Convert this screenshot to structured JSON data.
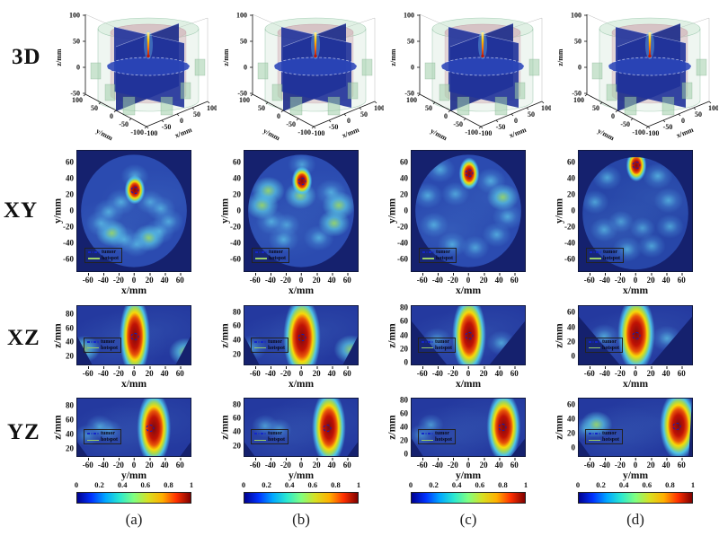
{
  "row_labels": [
    "3D",
    "XY",
    "XZ",
    "YZ"
  ],
  "column_labels": [
    "(a)",
    "(b)",
    "(c)",
    "(d)"
  ],
  "legend": {
    "tumor_label": "tumor",
    "hotspot_label": "hotspot"
  },
  "colorbar": {
    "ticks": [
      "0",
      "0.2",
      "0.4",
      "0.6",
      "0.8",
      "1"
    ],
    "colormap": "jet",
    "colormap_stops": [
      "#00008f",
      "#0032ff",
      "#00a8ff",
      "#2ae8d0",
      "#80ff80",
      "#d8e022",
      "#ffb000",
      "#ff3000",
      "#800000"
    ]
  },
  "colors": {
    "background_low": "#15216e",
    "domain_blue": "#24399f",
    "xy_circle_blue": "#2b4bb0",
    "hotspot_core_red": "#7c0a0f",
    "tumor_contour_blue": "#0d1fc0",
    "hotspot_contour_green": "#9acd66",
    "phantom_green": "#bcd9c2",
    "inner_pink": "#d2a7b0"
  },
  "axes_3d": {
    "x_label": "x/mm",
    "y_label": "y/mm",
    "z_label": "z/mm",
    "x_ticks": [
      "-100",
      "-50",
      "0",
      "50",
      "100"
    ],
    "y_ticks": [
      "100",
      "50",
      "0",
      "-50",
      "-100"
    ],
    "z_ticks": [
      "100",
      "50",
      "0",
      "-50"
    ]
  },
  "chart_data": {
    "type": "heatmap",
    "value_range": [
      0,
      1
    ],
    "panels": {
      "xy": {
        "xlabel": "x/mm",
        "ylabel": "y/mm",
        "xticks": [
          "-60",
          "-40",
          "-20",
          "0",
          "20",
          "40",
          "60"
        ],
        "yticks": [
          "60",
          "40",
          "20",
          "0",
          "-20",
          "-40",
          "-60"
        ],
        "xrange_mm": [
          -75,
          75
        ],
        "yrange_mm": [
          -75,
          75
        ],
        "phantom_radius_mm": 70,
        "columns": [
          {
            "hotspot_mm": [
              0,
              27
            ],
            "tumor_mm": [
              0,
              27
            ],
            "core_mm": [
              6,
              8
            ],
            "blobs": [
              [
                -18,
                12,
                0.5
              ],
              [
                -34,
                0,
                0.5
              ],
              [
                -44,
                -14,
                0.5
              ],
              [
                -30,
                -26,
                0.55
              ],
              [
                -14,
                -34,
                0.5
              ],
              [
                2,
                -40,
                0.45
              ],
              [
                18,
                -32,
                0.55
              ],
              [
                32,
                -24,
                0.5
              ],
              [
                44,
                -12,
                0.5
              ],
              [
                34,
                4,
                0.45
              ],
              [
                0,
                44,
                0.4
              ],
              [
                20,
                12,
                0.4
              ]
            ]
          },
          {
            "hotspot_mm": [
              0,
              38
            ],
            "tumor_mm": [
              0,
              38
            ],
            "core_mm": [
              6,
              8
            ],
            "blobs": [
              [
                -44,
                26,
                0.6
              ],
              [
                -52,
                8,
                0.6
              ],
              [
                -40,
                -12,
                0.5
              ],
              [
                -24,
                -34,
                0.5
              ],
              [
                22,
                -32,
                0.5
              ],
              [
                42,
                -14,
                0.55
              ],
              [
                48,
                8,
                0.6
              ],
              [
                38,
                24,
                0.5
              ],
              [
                -2,
                20,
                0.55
              ],
              [
                0,
                58,
                0.4
              ],
              [
                -20,
                -16,
                0.35
              ]
            ]
          },
          {
            "hotspot_mm": [
              0,
              47
            ],
            "tumor_mm": [
              0,
              47
            ],
            "core_mm": [
              6,
              9
            ],
            "blobs": [
              [
                -38,
                52,
                0.5
              ],
              [
                -54,
                20,
                0.5
              ],
              [
                -46,
                -16,
                0.45
              ],
              [
                -22,
                -40,
                0.45
              ],
              [
                8,
                -44,
                0.4
              ],
              [
                36,
                -28,
                0.45
              ],
              [
                50,
                -6,
                0.5
              ],
              [
                44,
                18,
                0.55
              ],
              [
                28,
                38,
                0.5
              ],
              [
                -18,
                22,
                0.4
              ]
            ]
          },
          {
            "hotspot_mm": [
              0,
              57
            ],
            "tumor_mm": [
              0,
              57
            ],
            "core_mm": [
              6,
              9
            ],
            "blobs": [
              [
                -38,
                42,
                0.45
              ],
              [
                -54,
                12,
                0.4
              ],
              [
                -42,
                -22,
                0.4
              ],
              [
                -12,
                -46,
                0.45
              ],
              [
                20,
                -42,
                0.4
              ],
              [
                44,
                -18,
                0.4
              ],
              [
                42,
                14,
                0.45
              ],
              [
                28,
                44,
                0.5
              ],
              [
                -20,
                -12,
                0.3
              ],
              [
                8,
                -20,
                0.3
              ]
            ]
          }
        ]
      },
      "xz": {
        "xlabel": "x/mm",
        "ylabel": "z/mm",
        "xticks": [
          "-60",
          "-40",
          "-20",
          "0",
          "20",
          "40",
          "60"
        ],
        "xrange_mm": [
          -75,
          75
        ],
        "columns": [
          {
            "zticks": [
              "80",
              "60",
              "40",
              "20"
            ],
            "zrange_mm": [
              8,
              92
            ],
            "hotspot_mm": [
              0,
              50
            ],
            "tumor_mm": [
              0,
              50
            ],
            "core_mm": [
              9,
              26
            ],
            "blobs": [
              [
                -66,
                32,
                0.55
              ],
              [
                66,
                28,
                0.6
              ]
            ]
          },
          {
            "zticks": [
              "80",
              "60",
              "40",
              "20"
            ],
            "zrange_mm": [
              4,
              90
            ],
            "hotspot_mm": [
              0,
              45
            ],
            "tumor_mm": [
              0,
              45
            ],
            "core_mm": [
              11,
              27
            ],
            "blobs": [
              [
                -66,
                30,
                0.5
              ],
              [
                64,
                28,
                0.65
              ]
            ]
          },
          {
            "zticks": [
              "80",
              "60",
              "40",
              "20",
              "0"
            ],
            "zrange_mm": [
              -4,
              84
            ],
            "hotspot_mm": [
              0,
              42
            ],
            "tumor_mm": [
              0,
              41
            ],
            "core_mm": [
              10,
              26
            ],
            "blobs": [
              [
                -42,
                34,
                0.45
              ],
              [
                42,
                30,
                0.45
              ]
            ]
          },
          {
            "zticks": [
              "60",
              "40",
              "20",
              "0"
            ],
            "zrange_mm": [
              -12,
              70
            ],
            "hotspot_mm": [
              0,
              32
            ],
            "tumor_mm": [
              0,
              30
            ],
            "core_mm": [
              11,
              24
            ],
            "blobs": [
              [
                -42,
                28,
                0.5
              ],
              [
                40,
                26,
                0.5
              ]
            ]
          }
        ]
      },
      "yz": {
        "xlabel": "y/mm",
        "ylabel": "z/mm",
        "xticks": [
          "-60",
          "-40",
          "-20",
          "0",
          "20",
          "40",
          "60"
        ],
        "xrange_mm": [
          -75,
          75
        ],
        "columns": [
          {
            "zticks": [
              "80",
              "60",
              "40",
              "20"
            ],
            "zrange_mm": [
              8,
              92
            ],
            "hotspot_mm": [
              25,
              50
            ],
            "tumor_mm": [
              20,
              50
            ],
            "core_mm": [
              10,
              24
            ],
            "blobs": [
              [
                -46,
                52,
                0.4
              ],
              [
                -34,
                46,
                0.35
              ],
              [
                -62,
                40,
                0.3
              ]
            ]
          },
          {
            "zticks": [
              "80",
              "60",
              "40",
              "20"
            ],
            "zrange_mm": [
              4,
              90
            ],
            "hotspot_mm": [
              35,
              48
            ],
            "tumor_mm": [
              33,
              47
            ],
            "core_mm": [
              10,
              25
            ],
            "blobs": [
              [
                -48,
                50,
                0.35
              ],
              [
                -30,
                45,
                0.3
              ]
            ]
          },
          {
            "zticks": [
              "80",
              "60",
              "40",
              "20",
              "0"
            ],
            "zrange_mm": [
              -4,
              84
            ],
            "hotspot_mm": [
              45,
              42
            ],
            "tumor_mm": [
              43,
              42
            ],
            "core_mm": [
              10,
              24
            ],
            "blobs": [
              [
                -50,
                45,
                0.3
              ],
              [
                -62,
                30,
                0.3
              ]
            ]
          },
          {
            "zticks": [
              "60",
              "40",
              "20",
              "0"
            ],
            "zrange_mm": [
              -12,
              70
            ],
            "hotspot_mm": [
              55,
              33
            ],
            "tumor_mm": [
              53,
              32
            ],
            "core_mm": [
              11,
              22
            ],
            "blobs": [
              [
                -52,
                34,
                0.55
              ],
              [
                -66,
                28,
                0.35
              ]
            ]
          }
        ]
      }
    }
  }
}
